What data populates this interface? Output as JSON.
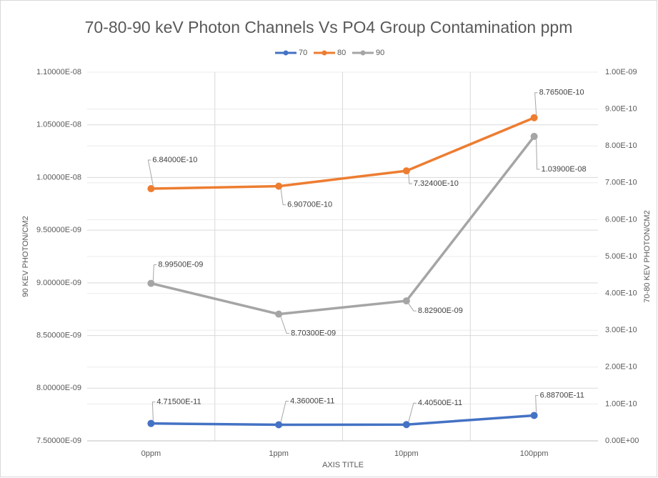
{
  "chart_data": {
    "type": "line",
    "title": "70-80-90 keV Photon Channels Vs PO4 Group Contamination ppm",
    "xlabel": "AXIS TITLE",
    "ylabel": "90 KEV PHOTON/CM2",
    "y2label": "70-80 KEV PHOTON/CM2",
    "categories": [
      "0ppm",
      "1ppm",
      "10ppm",
      "100ppm"
    ],
    "legend": "top",
    "grid": true,
    "ylim": [
      7.5e-09,
      1.1e-08
    ],
    "yticks": [
      {
        "value": 7.5e-09,
        "label": "7.50000E-09"
      },
      {
        "value": 8e-09,
        "label": "8.00000E-09"
      },
      {
        "value": 8.5e-09,
        "label": "8.50000E-09"
      },
      {
        "value": 9e-09,
        "label": "9.00000E-09"
      },
      {
        "value": 9.5e-09,
        "label": "9.50000E-09"
      },
      {
        "value": 1e-08,
        "label": "1.00000E-08"
      },
      {
        "value": 1.05e-08,
        "label": "1.05000E-08"
      },
      {
        "value": 1.1e-08,
        "label": "1.10000E-08"
      }
    ],
    "y2lim": [
      0,
      1e-09
    ],
    "y2ticks": [
      {
        "value": 0,
        "label": "0.00E+00"
      },
      {
        "value": 1e-10,
        "label": "1.00E-10"
      },
      {
        "value": 2e-10,
        "label": "2.00E-10"
      },
      {
        "value": 3e-10,
        "label": "3.00E-10"
      },
      {
        "value": 4e-10,
        "label": "4.00E-10"
      },
      {
        "value": 5e-10,
        "label": "5.00E-10"
      },
      {
        "value": 6e-10,
        "label": "6.00E-10"
      },
      {
        "value": 7e-10,
        "label": "7.00E-10"
      },
      {
        "value": 8e-10,
        "label": "8.00E-10"
      },
      {
        "value": 9e-10,
        "label": "9.00E-10"
      },
      {
        "value": 1e-09,
        "label": "1.00E-09"
      }
    ],
    "series": [
      {
        "name": "70",
        "color": "#4472c4",
        "axis": "y2",
        "values": [
          4.715e-11,
          4.36e-11,
          4.405e-11,
          6.887e-11
        ],
        "value_labels": [
          "4.71500E-11",
          "4.36000E-11",
          "4.40500E-11",
          "6.88700E-11"
        ]
      },
      {
        "name": "80",
        "color": "#ed7d31",
        "axis": "y2",
        "values": [
          6.84e-10,
          6.907e-10,
          7.324e-10,
          8.765e-10
        ],
        "value_labels": [
          "6.84000E-10",
          "6.90700E-10",
          "7.32400E-10",
          "8.76500E-10"
        ]
      },
      {
        "name": "90",
        "color": "#a5a5a5",
        "axis": "y",
        "values": [
          8.995e-09,
          8.703e-09,
          8.829e-09,
          1.039e-08
        ],
        "value_labels": [
          "8.99500E-09",
          "8.70300E-09",
          "8.82900E-09",
          "1.03900E-08"
        ]
      }
    ]
  }
}
